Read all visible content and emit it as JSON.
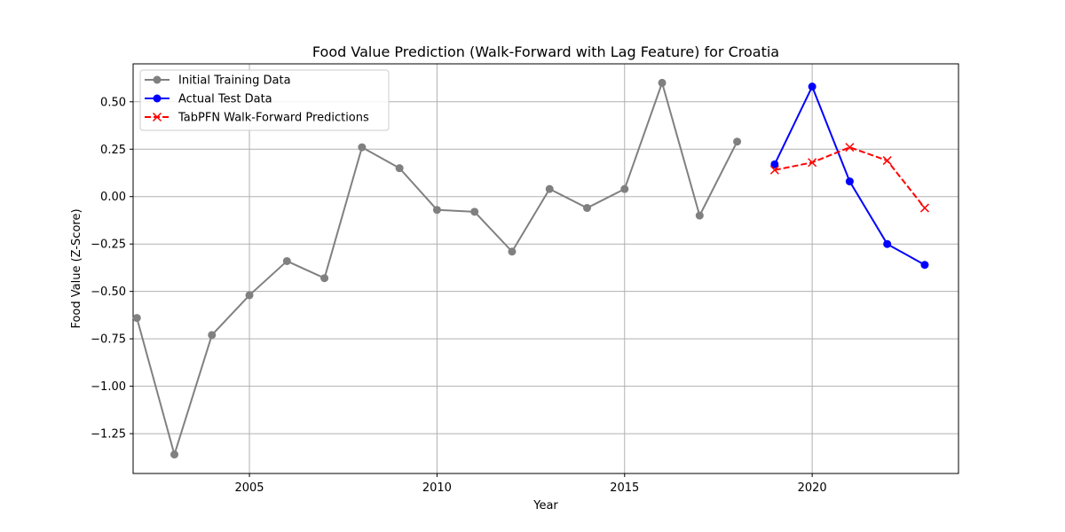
{
  "chart_data": {
    "type": "line",
    "title": "Food Value Prediction (Walk-Forward with Lag Feature) for Croatia",
    "xlabel": "Year",
    "ylabel": "Food Value (Z-Score)",
    "xlim": [
      2001.9,
      2023.9
    ],
    "ylim": [
      -1.46,
      0.7
    ],
    "xticks": [
      2005,
      2010,
      2015,
      2020
    ],
    "yticks": [
      -1.25,
      -1.0,
      -0.75,
      -0.5,
      -0.25,
      0.0,
      0.25,
      0.5
    ],
    "ytick_labels": [
      "−1.25",
      "−1.00",
      "−0.75",
      "−0.50",
      "−0.25",
      "0.00",
      "0.25",
      "0.50"
    ],
    "grid": true,
    "legend_position": "upper left",
    "series": [
      {
        "name": "Initial Training Data",
        "color": "#808080",
        "marker": "circle",
        "linestyle": "solid",
        "x": [
          2002,
          2003,
          2004,
          2005,
          2006,
          2007,
          2008,
          2009,
          2010,
          2011,
          2012,
          2013,
          2014,
          2015,
          2016,
          2017,
          2018
        ],
        "y": [
          -0.64,
          -1.36,
          -0.73,
          -0.52,
          -0.34,
          -0.43,
          0.26,
          0.15,
          -0.07,
          -0.08,
          -0.29,
          0.04,
          -0.06,
          0.04,
          0.6,
          -0.1,
          0.29
        ]
      },
      {
        "name": "Actual Test Data",
        "color": "#0000ff",
        "marker": "circle",
        "linestyle": "solid",
        "x": [
          2019,
          2020,
          2021,
          2022,
          2023
        ],
        "y": [
          0.17,
          0.58,
          0.08,
          -0.25,
          -0.36
        ]
      },
      {
        "name": "TabPFN Walk-Forward Predictions",
        "color": "#ff0000",
        "marker": "x",
        "linestyle": "dashed",
        "x": [
          2019,
          2020,
          2021,
          2022,
          2023
        ],
        "y": [
          0.14,
          0.18,
          0.26,
          0.19,
          -0.06
        ]
      }
    ]
  }
}
